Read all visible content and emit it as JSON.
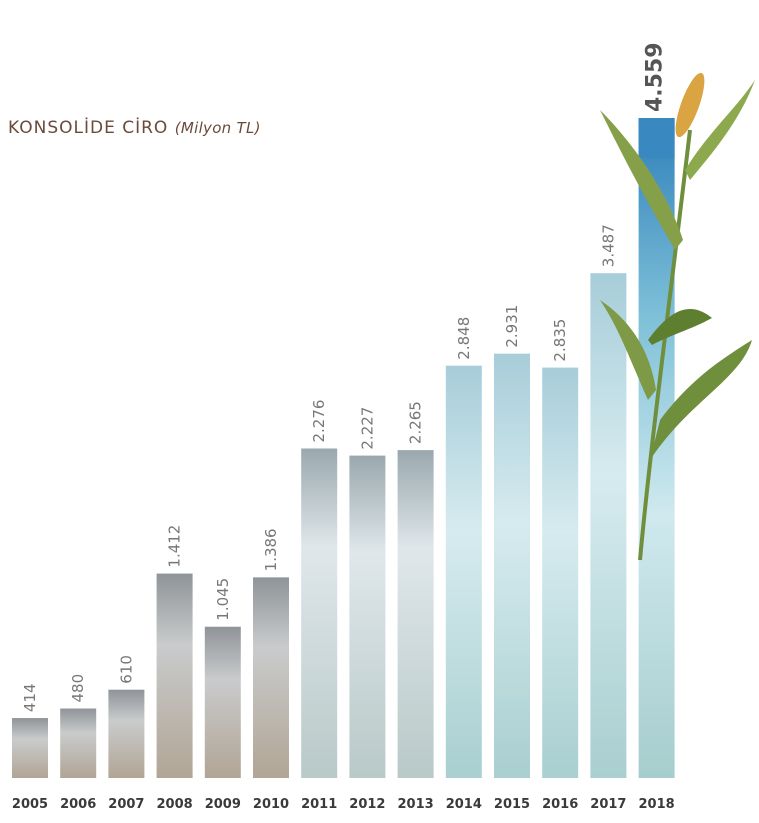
{
  "chart_data": {
    "type": "bar",
    "title": "KONSOLİDE CİRO",
    "title_unit": "(Milyon TL)",
    "categories": [
      "2005",
      "2006",
      "2007",
      "2008",
      "2009",
      "2010",
      "2011",
      "2012",
      "2013",
      "2014",
      "2015",
      "2016",
      "2017",
      "2018"
    ],
    "values": [
      414,
      480,
      610,
      1412,
      1045,
      1386,
      2276,
      2227,
      2265,
      2848,
      2931,
      2835,
      3487,
      4559
    ],
    "value_labels": [
      "414",
      "480",
      "610",
      "1.412",
      "1.045",
      "1.386",
      "2.276",
      "2.227",
      "2.265",
      "2.848",
      "2.931",
      "2.835",
      "3.487",
      "4.559"
    ],
    "highlight_category": "2018",
    "ylim": [
      0,
      5000
    ],
    "grid": false,
    "colors": {
      "title": "#6b4a3a",
      "value_label": "#777777",
      "value_label_highlight": "#555555",
      "category_label": "#3a3a3a",
      "bar_early": "#b7b9bb",
      "bar_mid": "#c3d3da",
      "bar_late": "#b8dbe5",
      "bar_top_2018": "#3a88c0",
      "hand": "#b58d6e",
      "seed": "#d4a33c",
      "leaf": "#6f8f3d"
    }
  }
}
